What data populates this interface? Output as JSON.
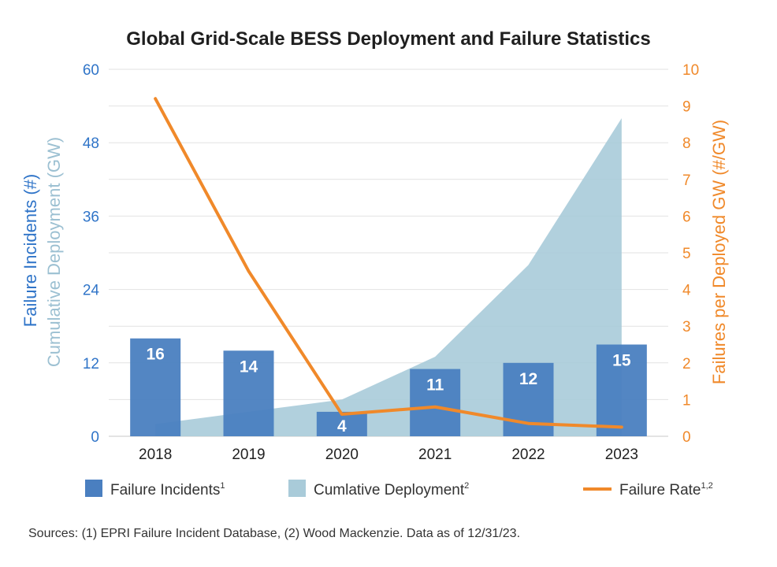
{
  "chart_data": {
    "type": "bar",
    "title": "Global Grid-Scale BESS Deployment and Failure Statistics",
    "categories": [
      "2018",
      "2019",
      "2020",
      "2021",
      "2022",
      "2023"
    ],
    "series": [
      {
        "name": "Failure Incidents",
        "sup": "1",
        "type": "bar",
        "axis": "left",
        "color": "#4a7fc0",
        "values": [
          16,
          14,
          4,
          11,
          12,
          15
        ]
      },
      {
        "name": "Cumlative Deployment",
        "sup": "2",
        "type": "area",
        "axis": "left",
        "color": "#a9cbd9",
        "values": [
          2,
          4,
          6,
          13,
          28,
          52
        ]
      },
      {
        "name": "Failure Rate",
        "sup": "1,2",
        "type": "line",
        "axis": "right",
        "color": "#f0892a",
        "values": [
          9.2,
          4.5,
          0.6,
          0.8,
          0.35,
          0.25
        ]
      }
    ],
    "y_left": {
      "label1": "Failure Incidents (#)",
      "label2": "Cumulative Deployment (GW)",
      "ticks": [
        "0",
        "12",
        "24",
        "36",
        "48",
        "60"
      ],
      "lim": [
        0,
        60
      ]
    },
    "y_right": {
      "label": "Failures per Deployed GW (#/GW)",
      "ticks": [
        "0",
        "1",
        "2",
        "3",
        "4",
        "5",
        "6",
        "7",
        "8",
        "9",
        "10"
      ],
      "lim": [
        0,
        10
      ]
    },
    "grid": true,
    "legend_position": "bottom",
    "source": "Sources: (1) EPRI Failure Incident Database, (2) Wood Mackenzie. Data as of 12/31/23."
  }
}
